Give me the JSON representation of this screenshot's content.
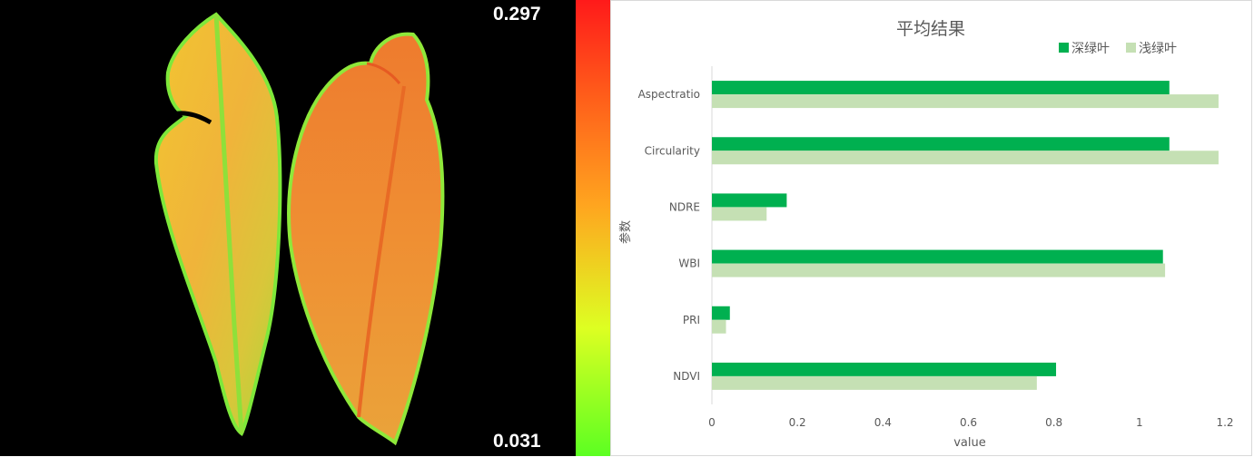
{
  "image_panel": {
    "max_value": "0.297",
    "min_value": "0.031",
    "colorbar": [
      "#ff1a1a",
      "#ff5a1a",
      "#ffa51f",
      "#ddff22",
      "#5cff22"
    ]
  },
  "chart_data": {
    "type": "bar",
    "orientation": "horizontal",
    "title": "平均结果",
    "xlabel": "value",
    "ylabel": "参数",
    "categories": [
      "Aspectratio",
      "Circularity",
      "NDRE",
      "WBI",
      "PRI",
      "NDVI"
    ],
    "series": [
      {
        "name": "深绿叶",
        "color": "#00b050",
        "values": [
          1.07,
          1.07,
          0.175,
          1.055,
          0.042,
          0.805
        ]
      },
      {
        "name": "浅绿叶",
        "color": "#c5e0b4",
        "values": [
          1.185,
          1.185,
          0.128,
          1.06,
          0.033,
          0.76
        ]
      }
    ],
    "xlim": [
      0,
      1.2
    ],
    "xticks": [
      "0",
      "0.2",
      "0.4",
      "0.6",
      "0.8",
      "1",
      "1.2"
    ],
    "grid": false,
    "legend_position": "top-right"
  }
}
